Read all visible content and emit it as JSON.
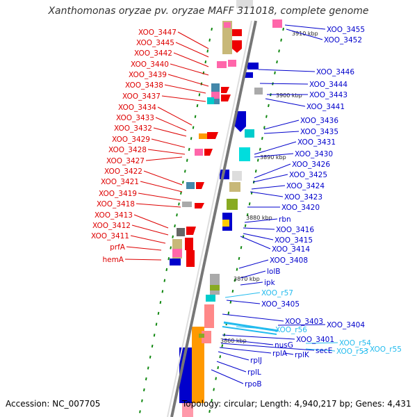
{
  "title": "Xanthomonas oryzae pv. oryzae MAFF 311018, complete genome",
  "footer": {
    "accession": "Accession: NC_007705",
    "summary": "Topology: circular; Length: 4,940,217 bp; Genes: 4,431"
  },
  "colors": {
    "left_label": "#dd0000",
    "right_label": "#0000cc",
    "rna_label": "#22bbee",
    "backbone": "#777777",
    "tick": "#118811"
  },
  "kbp_ticks": [
    "3910 kbp",
    "3900 kbp",
    "3890 kbp",
    "3880 kbp",
    "3870 kbp",
    "3860 kbp"
  ],
  "left_labels": [
    "XOO_3447",
    "XOO_3445",
    "XOO_3442",
    "XOO_3440",
    "XOO_3439",
    "XOO_3438",
    "XOO_3437",
    "XOO_3434",
    "XOO_3433",
    "XOO_3432",
    "XOO_3429",
    "XOO_3428",
    "XOO_3427",
    "XOO_3422",
    "XOO_3421",
    "XOO_3419",
    "XOO_3418",
    "XOO_3413",
    "XOO_3412",
    "XOO_3411",
    "prfA",
    "hemA"
  ],
  "right_labels": [
    "XOO_3455",
    "XOO_3452",
    "XOO_3446",
    "XOO_3444",
    "XOO_3443",
    "XOO_3441",
    "XOO_3436",
    "XOO_3435",
    "XOO_3431",
    "XOO_3430",
    "XOO_3426",
    "XOO_3425",
    "XOO_3424",
    "XOO_3423",
    "XOO_3420",
    "rbn",
    "XOO_3416",
    "XOO_3415",
    "XOO_3414",
    "XOO_3408",
    "lolB",
    "ipk",
    "XOO_3405",
    "XOO_3403",
    "XOO_3404",
    "XOO_3401",
    "nusG",
    "secE",
    "rplA",
    "rplK",
    "rplJ",
    "rplL",
    "rpoB"
  ],
  "rna_labels": [
    "XOO_r57",
    "XOO_r56",
    "XOO_r54",
    "XOO_r53",
    "XOO_r55"
  ]
}
